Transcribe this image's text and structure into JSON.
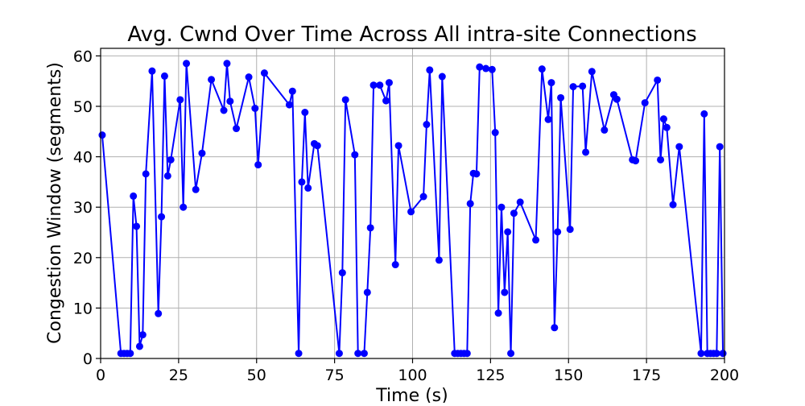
{
  "chart_data": {
    "type": "line",
    "title": "Avg. Cwnd Over Time Across All intra-site Connections",
    "xlabel": "Time (s)",
    "ylabel": "Congestion Window (segments)",
    "xlim": [
      0,
      200
    ],
    "ylim": [
      0,
      61.5
    ],
    "xticks": [
      0,
      25,
      50,
      75,
      100,
      125,
      150,
      175,
      200
    ],
    "yticks": [
      0,
      10,
      20,
      30,
      40,
      50,
      60
    ],
    "grid": true,
    "legend": "none",
    "series": [
      {
        "color": "#0000ff",
        "marker": "circle",
        "x": [
          0.5,
          6.5,
          7.5,
          8.5,
          9.5,
          10.5,
          11.5,
          12.5,
          13.5,
          14.5,
          16.5,
          18.5,
          19.5,
          20.5,
          21.5,
          22.5,
          25.5,
          26.5,
          27.5,
          30.5,
          32.5,
          35.5,
          39.5,
          40.5,
          41.5,
          43.5,
          47.5,
          49.5,
          50.5,
          52.5,
          60.5,
          61.5,
          63.5,
          64.5,
          65.5,
          66.5,
          68.5,
          69.5,
          76.5,
          77.5,
          78.5,
          81.5,
          82.5,
          84.5,
          85.5,
          86.5,
          87.5,
          89.5,
          91.5,
          92.5,
          94.5,
          95.5,
          99.5,
          103.5,
          104.5,
          105.5,
          108.5,
          109.5,
          113.5,
          114.5,
          115.5,
          116.5,
          117.5,
          118.5,
          119.5,
          120.5,
          121.5,
          123.5,
          125.5,
          126.5,
          127.5,
          128.5,
          129.5,
          130.5,
          131.5,
          132.5,
          134.5,
          139.5,
          141.5,
          143.5,
          144.5,
          145.5,
          146.5,
          147.5,
          150.5,
          151.5,
          154.5,
          155.5,
          157.5,
          161.5,
          164.5,
          165.5,
          170.5,
          171.5,
          174.5,
          178.5,
          179.5,
          180.5,
          181.5,
          183.5,
          185.5,
          192.5,
          193.5,
          194.5,
          195.5,
          196.5,
          197.5,
          198.5,
          199.5
        ],
        "y": [
          44.3,
          1.0,
          1.0,
          1.0,
          1.0,
          32.2,
          26.2,
          2.4,
          4.7,
          36.6,
          57.0,
          8.9,
          28.1,
          56.0,
          36.2,
          39.4,
          51.3,
          30.0,
          58.5,
          33.5,
          40.7,
          55.3,
          49.2,
          58.5,
          51.0,
          45.6,
          55.8,
          49.6,
          38.4,
          56.6,
          50.3,
          53.0,
          1.0,
          35.0,
          48.8,
          33.8,
          42.6,
          42.2,
          1.0,
          17.0,
          51.3,
          40.4,
          1.0,
          1.0,
          13.1,
          25.9,
          54.2,
          54.2,
          51.1,
          54.7,
          18.6,
          42.2,
          29.1,
          32.1,
          46.4,
          57.2,
          19.5,
          55.9,
          1.0,
          1.0,
          1.0,
          1.0,
          1.0,
          30.7,
          36.7,
          36.6,
          57.8,
          57.5,
          57.3,
          44.8,
          9.0,
          30.0,
          13.1,
          25.1,
          1.0,
          28.8,
          31.0,
          23.5,
          57.4,
          47.4,
          54.7,
          6.1,
          25.1,
          51.7,
          25.6,
          53.9,
          54.0,
          40.9,
          56.9,
          45.3,
          52.3,
          51.4,
          39.4,
          39.2,
          50.7,
          55.2,
          39.4,
          47.5,
          45.8,
          30.5,
          42.0,
          1.0,
          48.5,
          1.0,
          1.0,
          1.0,
          1.0,
          42.0,
          1.0
        ]
      }
    ]
  }
}
